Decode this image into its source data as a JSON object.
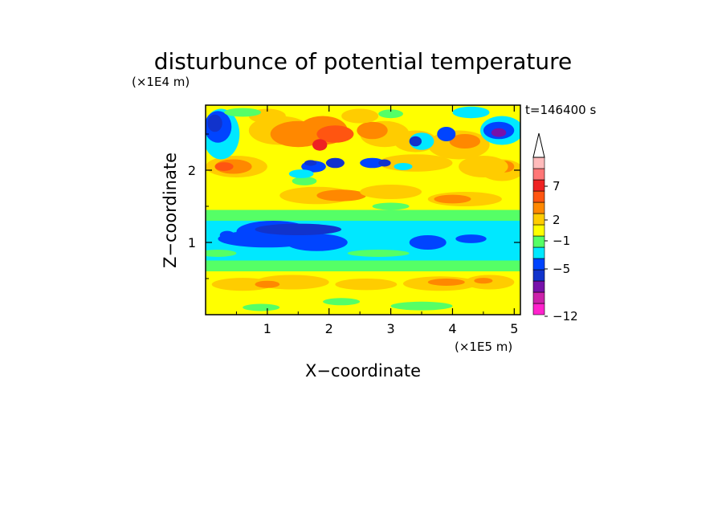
{
  "chart_data": {
    "type": "heatmap",
    "title": "disturbunce of potential temperature",
    "time_label": "t=146400 s",
    "xlabel": "X−coordinate",
    "ylabel": "Z−coordinate",
    "x_unit": "(×1E5 m)",
    "y_unit": "(×1E4 m)",
    "xlim": [
      0,
      5.1
    ],
    "ylim": [
      0,
      2.9
    ],
    "x_ticks": [
      "1",
      "2",
      "3",
      "4",
      "5"
    ],
    "y_ticks": [
      "1",
      "2"
    ],
    "colorbar": {
      "labels": [
        "7",
        "2",
        "−1",
        "−5",
        "−12"
      ],
      "extend": "max",
      "colors": [
        "#ff22cc",
        "#cc22aa",
        "#7711aa",
        "#1133cc",
        "#0044ff",
        "#00e8ff",
        "#55ff66",
        "#ffff00",
        "#ffcc00",
        "#ff8800",
        "#ff5511",
        "#ee2222",
        "#ff7777",
        "#ffbbbb"
      ]
    },
    "field_layers": [
      {
        "level": "0.0-0.35",
        "dominant": "green/yellow"
      },
      {
        "level": "0.35-0.6",
        "dominant": "orange/yellow"
      },
      {
        "level": "0.6-0.75",
        "dominant": "green"
      },
      {
        "level": "0.75-1.3",
        "dominant": "cyan/blue"
      },
      {
        "level": "1.3-1.5",
        "dominant": "green"
      },
      {
        "level": "1.5-2.4",
        "dominant": "yellow/orange/blue"
      },
      {
        "level": "2.4-2.9",
        "dominant": "orange/red/blue"
      }
    ]
  }
}
